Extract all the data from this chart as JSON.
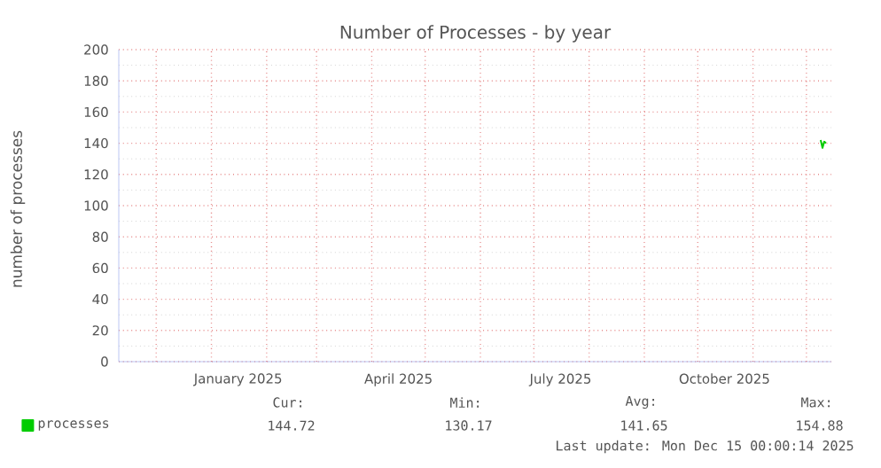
{
  "chart_data": {
    "type": "line",
    "title": "Number of Processes - by year",
    "ylabel": "number of processes",
    "x": [
      "2025-12-09",
      "2025-12-10",
      "2025-12-11",
      "2025-12-12"
    ],
    "series": [
      {
        "name": "processes",
        "color": "#00cc00",
        "values": [
          142,
          137,
          141,
          140
        ]
      }
    ],
    "xlim": [
      "2024-11-10",
      "2025-12-15"
    ],
    "xticks": [
      {
        "value": "2024-12-01",
        "label": null
      },
      {
        "value": "2025-01-01",
        "label": null
      },
      {
        "value": "2025-01-16",
        "label": "January 2025"
      },
      {
        "value": "2025-02-01",
        "label": null
      },
      {
        "value": "2025-03-01",
        "label": null
      },
      {
        "value": "2025-04-01",
        "label": null
      },
      {
        "value": "2025-04-16",
        "label": "April 2025"
      },
      {
        "value": "2025-05-01",
        "label": null
      },
      {
        "value": "2025-06-01",
        "label": null
      },
      {
        "value": "2025-07-01",
        "label": null
      },
      {
        "value": "2025-07-16",
        "label": "July 2025"
      },
      {
        "value": "2025-08-01",
        "label": null
      },
      {
        "value": "2025-09-01",
        "label": null
      },
      {
        "value": "2025-10-01",
        "label": null
      },
      {
        "value": "2025-10-16",
        "label": "October 2025"
      },
      {
        "value": "2025-11-01",
        "label": null
      },
      {
        "value": "2025-12-01",
        "label": null
      }
    ],
    "ylim": [
      0,
      200
    ],
    "yticks": [
      0,
      20,
      40,
      60,
      80,
      100,
      120,
      140,
      160,
      180,
      200
    ],
    "grid": true,
    "legend": "bottom left",
    "annotations": [
      "Cur:",
      "144.72",
      "Min:",
      "130.17",
      "Avg:",
      "141.65",
      "Max:",
      "154.88",
      "Last update: Mon Dec 15 00:00:14 2025"
    ]
  }
}
